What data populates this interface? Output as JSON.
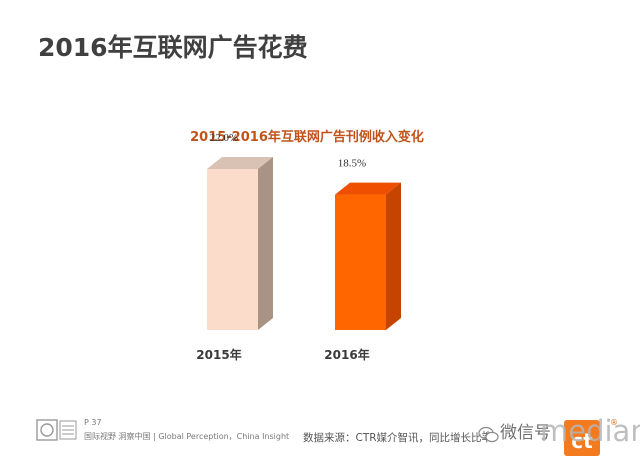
{
  "page": {
    "title": "2016年互联网广告花费"
  },
  "chart_data": {
    "type": "bar",
    "title": "2015-2016年互联网广告刊例收入变化",
    "categories": [
      "2015年",
      "2016年"
    ],
    "values": [
      22.0,
      18.5
    ],
    "value_labels": [
      "22.0%",
      "18.5%"
    ],
    "unit": "%",
    "ylim": [
      0,
      25
    ],
    "grid": false,
    "style": "3d",
    "colors": {
      "bar_2015_front": "#fbdccb",
      "bar_2015_top": "#d9c1b3",
      "bar_2015_side": "#a89384",
      "bar_2016_front": "#ff6600",
      "bar_2016_top": "#ee4f00",
      "bar_2016_side": "#c44400"
    }
  },
  "footer": {
    "page_no": "P 37",
    "tagline": "国际视野 洞察中国 | Global Perception，China Insight",
    "source": "数据来源：CTR媒介智讯，同比增长比率"
  },
  "watermark": {
    "wechat_label": "微信号",
    "brand_word": "mediam",
    "brand_color": "#f47a20"
  }
}
